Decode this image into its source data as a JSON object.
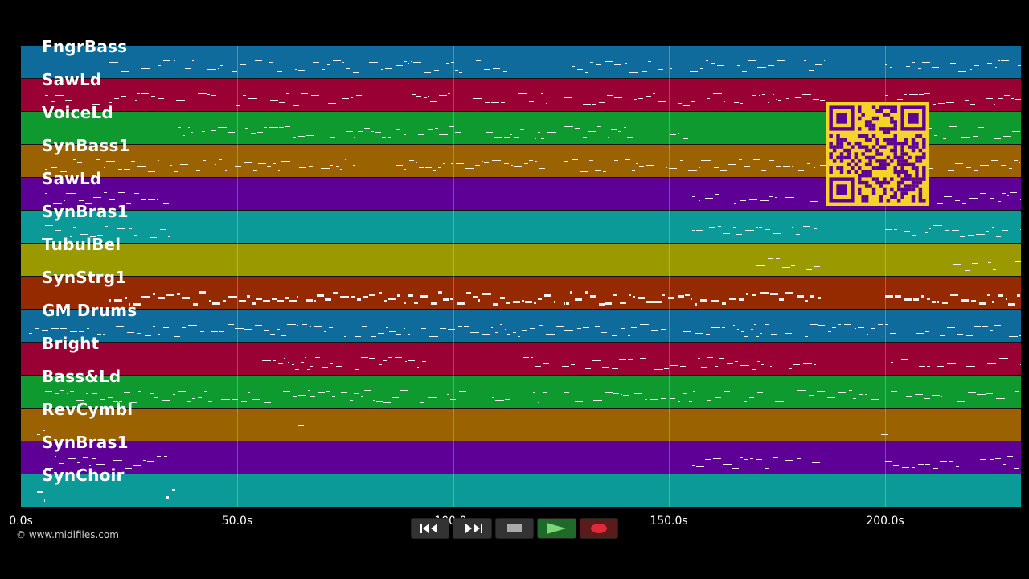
{
  "tracks": [
    {
      "name": "FngrBass",
      "color": "#0f6b9c"
    },
    {
      "name": "SawLd",
      "color": "#990033"
    },
    {
      "name": "VoiceLd",
      "color": "#0e9a2e"
    },
    {
      "name": "SynBass1",
      "color": "#9a6200"
    },
    {
      "name": "SawLd",
      "color": "#5e0096"
    },
    {
      "name": "SynBras1",
      "color": "#0c9a98"
    },
    {
      "name": "TubulBel",
      "color": "#9a9a00"
    },
    {
      "name": "SynStrg1",
      "color": "#952a00"
    },
    {
      "name": "GM Drums",
      "color": "#0f6b9c"
    },
    {
      "name": "Bright",
      "color": "#990033"
    },
    {
      "name": "Bass&Ld",
      "color": "#0e9a2e"
    },
    {
      "name": "RevCymbl",
      "color": "#9a6200"
    },
    {
      "name": "SynBras1",
      "color": "#5e0096"
    },
    {
      "name": "SynChoir",
      "color": "#0c9a98"
    }
  ],
  "timeline": {
    "ticks": [
      "0.0s",
      "50.0s",
      "100.0s",
      "150.0s",
      "200.0s"
    ]
  },
  "copyright": "© www.midifiles.com",
  "controls": [
    {
      "name": "rewind",
      "icon": "rewind-icon"
    },
    {
      "name": "fast-forward",
      "icon": "fast-forward-icon"
    },
    {
      "name": "stop",
      "icon": "stop-icon"
    },
    {
      "name": "play",
      "icon": "play-icon"
    },
    {
      "name": "record",
      "icon": "record-icon"
    }
  ],
  "colors": {
    "background": "#000000",
    "qr": "#f5d42a"
  }
}
